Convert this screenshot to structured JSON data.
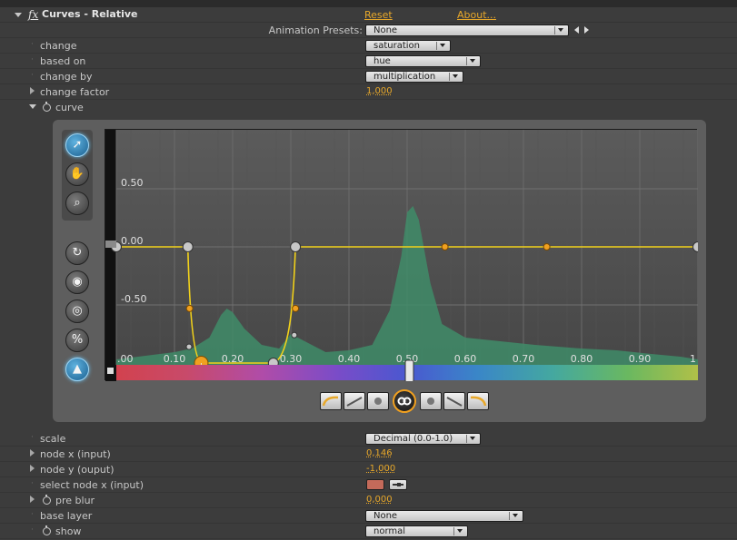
{
  "effect": {
    "title": "Curves - Relative",
    "fx_label": "fx",
    "reset_label": "Reset",
    "about_label": "About..."
  },
  "animation_presets": {
    "label": "Animation Presets:",
    "value": "None"
  },
  "params_top": [
    {
      "name": "change",
      "control": "dropdown",
      "value": "saturation"
    },
    {
      "name": "based on",
      "control": "dropdown",
      "value": "hue"
    },
    {
      "name": "change by",
      "control": "dropdown",
      "value": "multiplication"
    },
    {
      "name": "change factor",
      "control": "value",
      "value": "1,000"
    },
    {
      "name": "curve",
      "control": "none",
      "value": ""
    }
  ],
  "curve_editor": {
    "y_labels": [
      "0.50",
      "0.00",
      "-0.50"
    ],
    "x_labels": [
      ".00",
      "0.10",
      "0.20",
      "0.30",
      "0.40",
      "0.50",
      "0.60",
      "0.70",
      "0.80",
      "0.90",
      "1"
    ],
    "tools": [
      "select-arrow-icon",
      "hand-pan-icon",
      "zoom-icon"
    ],
    "view_tools": [
      "reset-view-icon",
      "eye-view-icon",
      "eye-filled-icon",
      "percent-icon",
      "histogram-icon"
    ],
    "shape_tools": [
      "ease-in-icon",
      "linear-left-icon",
      "hand-left-icon",
      "link-icon",
      "hand-right-icon",
      "linear-right-icon",
      "ease-out-icon"
    ]
  },
  "params_bottom": [
    {
      "name": "scale",
      "control": "dropdown",
      "value": "Decimal (0.0-1.0)"
    },
    {
      "name": "node x (input)",
      "control": "value",
      "value": "0,146"
    },
    {
      "name": "node y (ouput)",
      "control": "value",
      "value": "-1,000"
    },
    {
      "name": "select node x (input)",
      "control": "color",
      "value": ""
    },
    {
      "name": "pre blur",
      "control": "value",
      "value": "0,000"
    },
    {
      "name": "base layer",
      "control": "dropdown",
      "value": "None"
    },
    {
      "name": "show",
      "control": "dropdown",
      "value": "normal"
    }
  ],
  "colors": {
    "accent": "#e8a82a",
    "curve": "#f2d21a",
    "histogram": "#3f8c68",
    "swatch": "#c46a5a"
  }
}
